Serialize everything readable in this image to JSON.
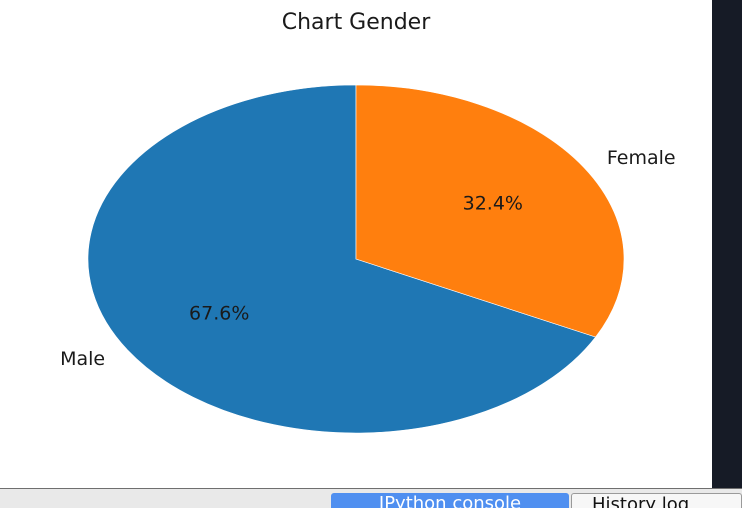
{
  "chart_data": {
    "type": "pie",
    "title": "Chart Gender",
    "categories": [
      "Male",
      "Female"
    ],
    "values": [
      67.6,
      32.4
    ],
    "labels": [
      "67.6%",
      "32.4%"
    ],
    "colors": [
      "#1f77b4",
      "#ff7f0e"
    ],
    "start_angle_deg": 90,
    "direction": "counterclockwise",
    "legend": "none"
  },
  "tabs": [
    {
      "label": "IPython console",
      "active": true
    },
    {
      "label": "History log",
      "active": false
    }
  ]
}
